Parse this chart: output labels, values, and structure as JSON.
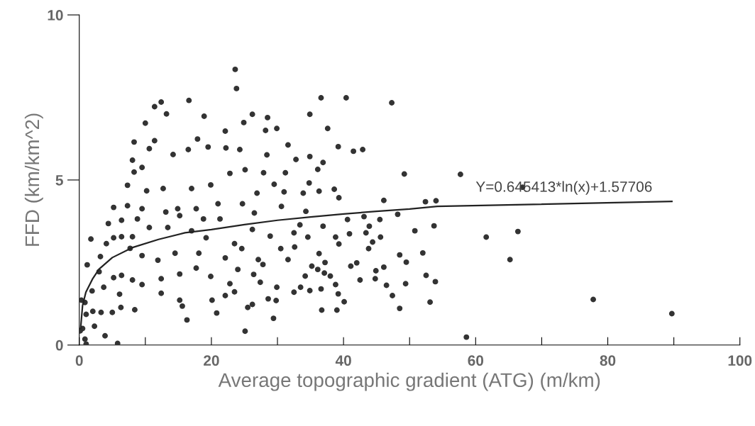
{
  "chart_data": {
    "type": "scatter",
    "xlabel": "Average topographic gradient (ATG) (m/km)",
    "ylabel": "FFD (km/km^2)",
    "xlim": [
      0,
      100
    ],
    "ylim": [
      0,
      10
    ],
    "xticks": [
      0,
      {
        "value": 10,
        "label": null
      },
      20,
      {
        "value": 30,
        "label": null
      },
      40,
      {
        "value": 50,
        "label": null
      },
      60,
      {
        "value": 70,
        "label": null
      },
      80,
      {
        "value": 90,
        "label": null
      },
      100
    ],
    "yticks": [
      0,
      5,
      10
    ],
    "grid": false,
    "annotations": [
      "Y=0.645413*ln(x)+1.57706"
    ],
    "series": [
      {
        "color": "#333333",
        "marker": "circle",
        "x": [
          23.6,
          23.8,
          12.4,
          11.4,
          16.6,
          13.2,
          18.9,
          10.0,
          22.1,
          8.3,
          11.4,
          10.6,
          8.05,
          8.3,
          9.5,
          14.2,
          16.5,
          19.5,
          22.2,
          17.9,
          7.3,
          10.2,
          12.7,
          17.0,
          19.9,
          22.8,
          5.2,
          7.3,
          9.5,
          13.1,
          14.9,
          17.7,
          21.0,
          4.4,
          6.4,
          8.8,
          15.2,
          18.8,
          21.3,
          1.76,
          5.2,
          6.4,
          8.05,
          10.6,
          13.4,
          17.0,
          19.2,
          4.1,
          7.7,
          9.5,
          11.9,
          14.5,
          18.1,
          22.1,
          23.5,
          3.2,
          1.2,
          3.0,
          5.2,
          6.4,
          8.05,
          9.5,
          12.4,
          15.2,
          17.7,
          19.9,
          22.8,
          23.5,
          22.1,
          1.94,
          3.7,
          6.1,
          12.4,
          15.2,
          15.6,
          20.1,
          20.8,
          16.3,
          8.4,
          6.3,
          5.0,
          3.3,
          2.05,
          1.04,
          0.86,
          0.32,
          0.5,
          2.3,
          3.9,
          5.8,
          1.04,
          0.86,
          0.14,
          36.6,
          40.4,
          47.3,
          34.9,
          28.5,
          26.2,
          24.9,
          28.2,
          29.9,
          37.6,
          24.3,
          31.6,
          39.2,
          41.5,
          42.9,
          28.4,
          34.9,
          32.8,
          36.9,
          36.1,
          25.1,
          27.9,
          31.2,
          49.2,
          29.5,
          34.8,
          26.9,
          31.0,
          33.9,
          36.3,
          38.6,
          39.3,
          46.1,
          52.4,
          54.0,
          24.7,
          26.5,
          30.6,
          34.3,
          40.6,
          43.1,
          45.5,
          48.2,
          53.7,
          50.8,
          43.9,
          36.9,
          33.4,
          26.2,
          28.9,
          32.5,
          34.6,
          38.8,
          40.9,
          43.4,
          45.6,
          44.4,
          39.3,
          43.8,
          24.6,
          30.5,
          32.6,
          36.3,
          48.5,
          52.0,
          27.1,
          31.6,
          37.2,
          42.0,
          49.5,
          24.0,
          27.8,
          35.2,
          36.1,
          41.1,
          44.9,
          46.1,
          26.4,
          34.2,
          37.1,
          38.0,
          42.5,
          44.8,
          46.5,
          49.4,
          52.5,
          53.9,
          27.4,
          29.9,
          33.5,
          32.5,
          34.9,
          36.6,
          38.8,
          39.2,
          47.4,
          28.6,
          29.8,
          40.1,
          53.1,
          26.2,
          25.5,
          36.7,
          39.0,
          48.5,
          29.4,
          25.1,
          57.7,
          67.1,
          61.6,
          66.4,
          65.2,
          77.8,
          89.7,
          58.6
        ],
        "values": [
          8.35,
          7.77,
          7.36,
          7.22,
          7.41,
          7.0,
          6.93,
          6.72,
          6.48,
          6.15,
          6.19,
          5.95,
          5.6,
          5.24,
          5.38,
          5.77,
          5.92,
          6.0,
          5.97,
          6.24,
          4.84,
          4.67,
          4.74,
          4.74,
          4.85,
          5.2,
          4.17,
          4.22,
          4.13,
          4.03,
          4.13,
          4.13,
          4.28,
          3.68,
          3.78,
          3.82,
          3.92,
          3.82,
          3.82,
          3.21,
          3.25,
          3.28,
          3.28,
          3.56,
          3.56,
          3.46,
          3.25,
          3.07,
          2.93,
          2.71,
          2.57,
          2.78,
          2.78,
          2.64,
          3.07,
          2.68,
          2.43,
          2.22,
          2.04,
          2.11,
          1.97,
          1.83,
          2.01,
          2.15,
          2.33,
          2.08,
          1.86,
          1.61,
          1.5,
          1.64,
          1.75,
          1.54,
          1.57,
          1.36,
          1.18,
          1.36,
          0.97,
          0.76,
          1.07,
          1.14,
          0.99,
          0.99,
          1.02,
          0.93,
          1.29,
          1.36,
          0.5,
          0.57,
          0.28,
          0.05,
          0.03,
          0.18,
          0.43,
          7.49,
          7.49,
          7.34,
          6.99,
          6.89,
          6.99,
          6.74,
          6.5,
          6.56,
          6.56,
          5.92,
          6.06,
          6.01,
          5.87,
          5.92,
          5.76,
          5.71,
          5.62,
          5.53,
          5.32,
          5.31,
          5.22,
          5.22,
          5.18,
          4.87,
          4.91,
          4.6,
          4.64,
          4.6,
          4.66,
          4.72,
          4.46,
          4.38,
          4.34,
          4.37,
          4.28,
          4.0,
          4.2,
          4.05,
          3.8,
          3.89,
          3.8,
          3.96,
          3.61,
          3.46,
          3.6,
          3.6,
          3.64,
          3.5,
          3.3,
          3.4,
          3.27,
          3.27,
          3.37,
          3.4,
          3.27,
          3.12,
          3.06,
          2.92,
          2.92,
          2.92,
          2.97,
          2.77,
          2.73,
          2.79,
          2.59,
          2.59,
          2.5,
          2.49,
          2.51,
          2.29,
          2.44,
          2.39,
          2.29,
          2.39,
          2.25,
          2.36,
          2.14,
          2.09,
          2.18,
          2.09,
          1.97,
          2.01,
          1.81,
          1.86,
          2.11,
          1.92,
          1.9,
          1.75,
          1.75,
          1.6,
          1.65,
          1.7,
          1.83,
          1.55,
          1.5,
          1.4,
          1.35,
          1.31,
          1.3,
          1.23,
          1.14,
          1.06,
          1.06,
          1.11,
          0.81,
          0.42,
          5.17,
          4.78,
          3.27,
          3.44,
          2.59,
          1.38,
          0.95,
          0.24
        ]
      },
      {
        "type": "line",
        "color": "#222222",
        "x": [
          0.2,
          0.5,
          1,
          2,
          3,
          5,
          8,
          12,
          16,
          20,
          25,
          30,
          35,
          40,
          45,
          50,
          54.2,
          89.7
        ],
        "values": [
          0.5,
          1.2,
          1.6,
          2.0,
          2.3,
          2.65,
          2.95,
          3.2,
          3.4,
          3.5,
          3.65,
          3.78,
          3.88,
          3.97,
          4.05,
          4.12,
          4.2,
          4.35
        ]
      }
    ]
  }
}
